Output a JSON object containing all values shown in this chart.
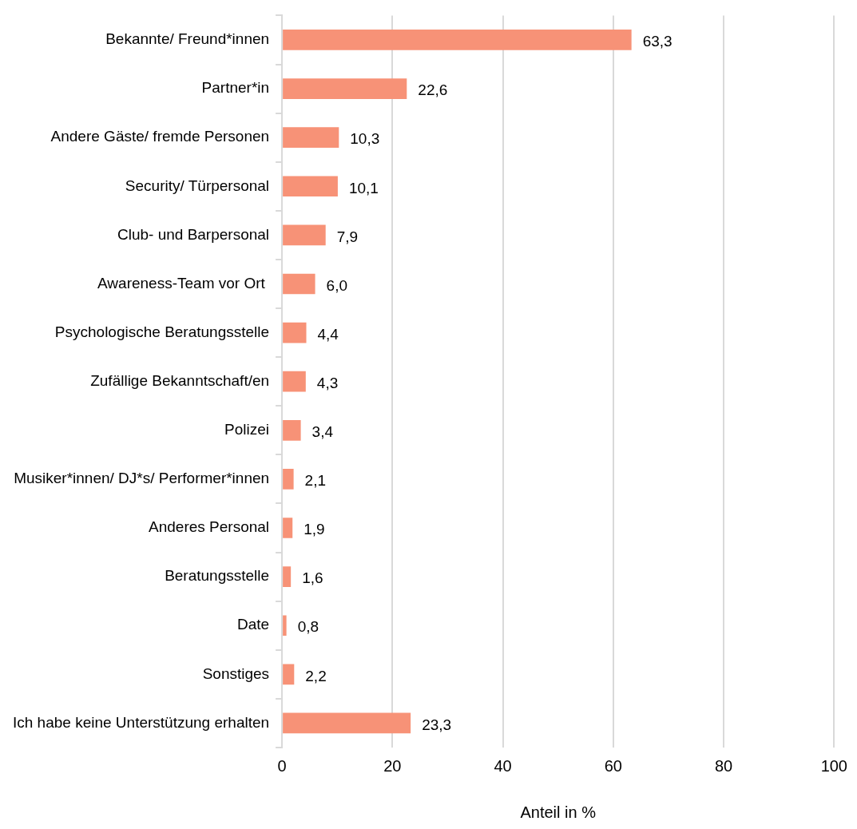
{
  "chart_data": {
    "type": "bar",
    "orientation": "horizontal",
    "xlabel": "Anteil in %",
    "categories": [
      "Bekannte/ Freund*innen",
      "Partner*in",
      "Andere Gäste/ fremde Personen",
      "Security/ Türpersonal",
      "Club- und Barpersonal",
      "Awareness-Team vor Ort ",
      "Psychologische Beratungsstelle",
      "Zufällige Bekanntschaft/en",
      "Polizei",
      "Musiker*innen/ DJ*s/ Performer*innen",
      "Anderes Personal",
      "Beratungsstelle",
      "Date",
      "Sonstiges",
      "Ich habe keine Unterstützung erhalten"
    ],
    "values": [
      63.3,
      22.6,
      10.3,
      10.1,
      7.9,
      6.0,
      4.4,
      4.3,
      3.4,
      2.1,
      1.9,
      1.6,
      0.8,
      2.2,
      23.3
    ],
    "value_labels": [
      "63,3",
      "22,6",
      "10,3",
      "10,1",
      "7,9",
      "6,0",
      "4,4",
      "4,3",
      "3,4",
      "2,1",
      "1,9",
      "1,6",
      "0,8",
      "2,2",
      "23,3"
    ],
    "color": "#f79277",
    "xlim": [
      0,
      100
    ],
    "xticks": [
      0,
      20,
      40,
      60,
      80,
      100
    ],
    "grid": "x"
  }
}
